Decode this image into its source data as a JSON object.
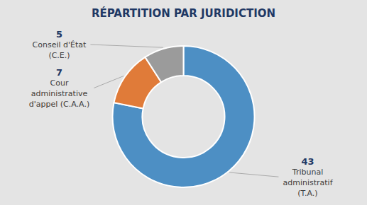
{
  "chart_data": {
    "type": "donut",
    "title": "RÉPARTITION PAR JURIDICTION",
    "categories": [
      "Tribunal\nadministratif\n(T.A.)",
      "Cour\nadministrative\nd'appel (C.A.A.)",
      "Conseil d'État\n(C.E.)"
    ],
    "values": [
      43,
      7,
      5
    ],
    "colors": [
      "#4d8fc4",
      "#e07b39",
      "#9b9b9b"
    ],
    "data_labels": true
  }
}
